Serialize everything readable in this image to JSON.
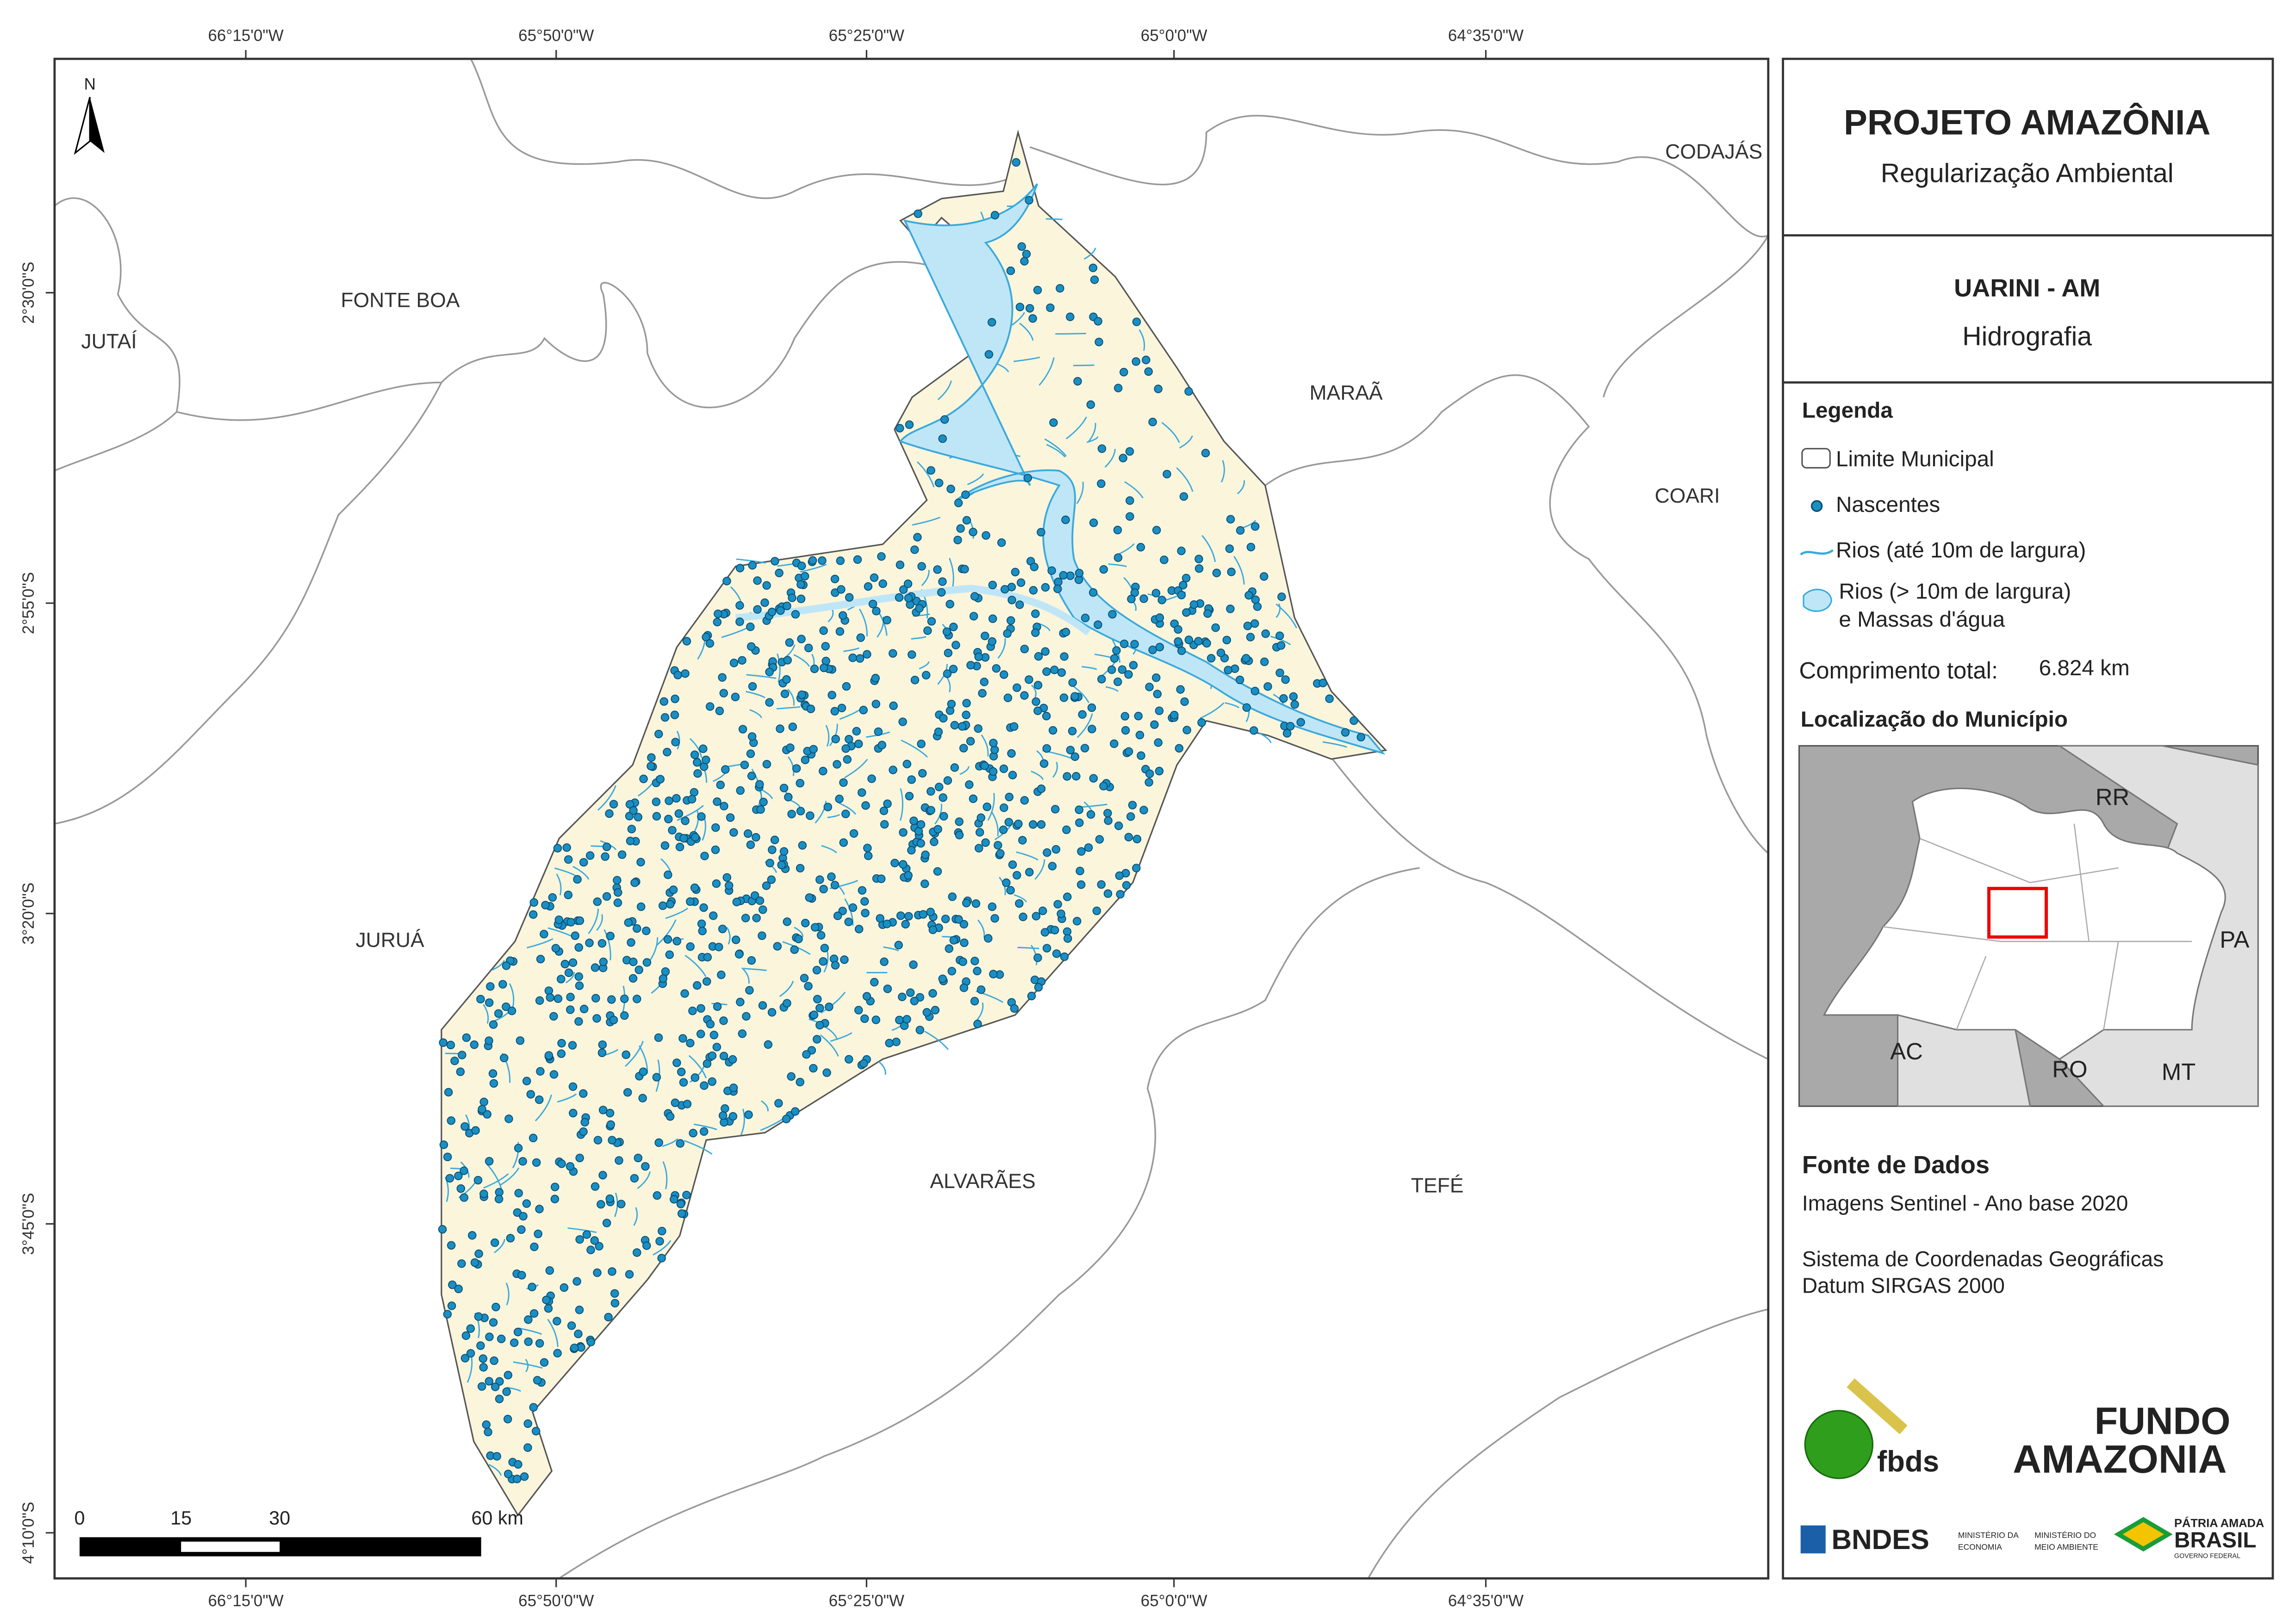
{
  "map": {
    "north": "N",
    "coord_top": [
      "66°15'0\"W",
      "65°50'0\"W",
      "65°25'0\"W",
      "65°0'0\"W",
      "64°35'0\"W"
    ],
    "coord_bottom": [
      "66°15'0\"W",
      "65°50'0\"W",
      "65°25'0\"W",
      "65°0'0\"W",
      "64°35'0\"W"
    ],
    "coord_left": [
      "2°30'0\"S",
      "2°55'0\"S",
      "3°20'0\"S",
      "3°45'0\"S",
      "4°10'0\"S"
    ],
    "municipalities": [
      "FONTE BOA",
      "JUTAÍ",
      "MARAÃ",
      "CODAJÁS",
      "COARI",
      "JURUÁ",
      "ALVARÃES",
      "TEFÉ"
    ],
    "scale_labels": [
      "0",
      "15",
      "30",
      "60 km"
    ]
  },
  "panel": {
    "title": "PROJETO AMAZÔNIA",
    "subtitle": "Regularização Ambiental",
    "area": "UARINI - AM",
    "theme": "Hidrografia",
    "legend_title": "Legenda",
    "legend_items": [
      "Limite Municipal",
      "Nascentes",
      "Rios (até 10m de largura)",
      "Rios (> 10m de largura)",
      "e Massas d'água"
    ],
    "total_label": "Comprimento total:",
    "total_value": "6.824 km",
    "location_title": "Localização do Município",
    "states": [
      "RR",
      "PA",
      "AC",
      "RO",
      "MT"
    ],
    "sources_title": "Fonte de Dados",
    "sources": [
      "Imagens Sentinel - Ano base 2020",
      "Sistema de Coordenadas Geográficas",
      "Datum SIRGAS 2000"
    ],
    "logos": [
      "fbds",
      "FUNDO",
      "AMAZONIA",
      "BNDES",
      "MINISTÉRIO DA",
      "ECONOMIA",
      "MINISTÉRIO DO",
      "MEIO AMBIENTE",
      "PÁTRIA AMADA",
      "BRASIL",
      "GOVERNO FEDERAL"
    ]
  }
}
